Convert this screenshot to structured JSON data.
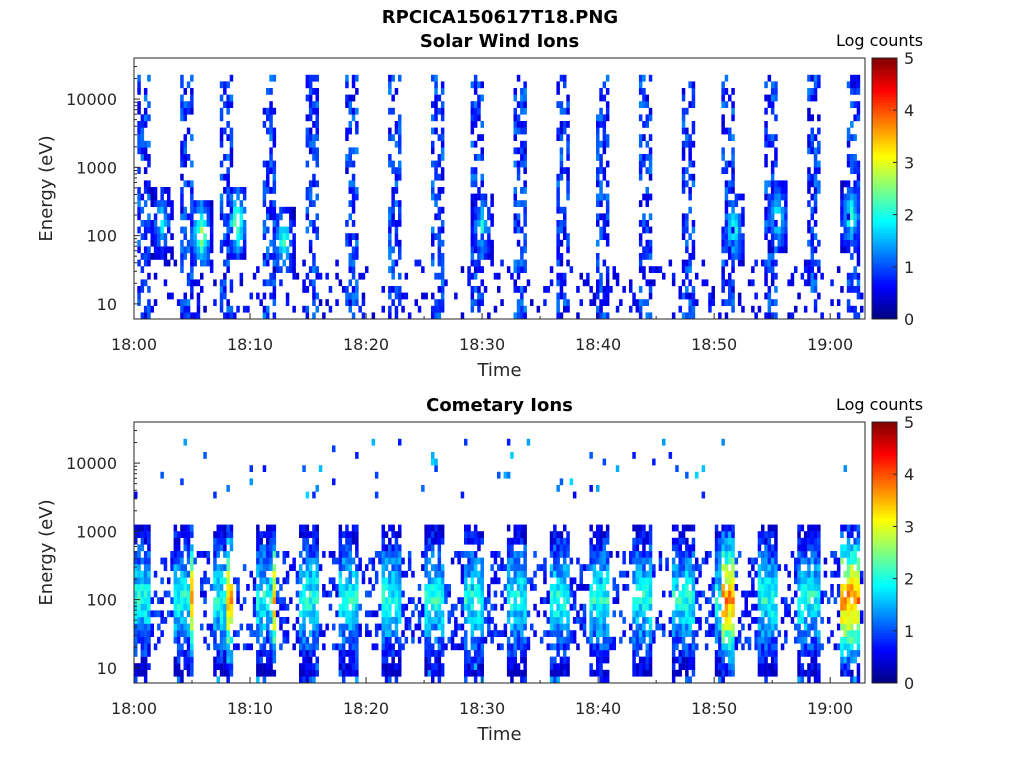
{
  "figure_title": "RPCICA150617T18.PNG",
  "chart_data": [
    {
      "type": "heatmap",
      "title": "Solar Wind Ions",
      "xlabel": "Time",
      "ylabel": "Energy (eV)",
      "x_ticks": [
        "18:00",
        "18:10",
        "18:20",
        "18:30",
        "18:40",
        "18:50",
        "19:00"
      ],
      "y_ticks": [
        "10",
        "100",
        "1000",
        "10000"
      ],
      "x_range": [
        "18:00",
        "19:03"
      ],
      "y_range": [
        6,
        40000
      ],
      "y_scale": "log",
      "colorbar": {
        "label": "Log counts",
        "ticks": [
          "0",
          "1",
          "2",
          "3",
          "4",
          "5"
        ],
        "range": [
          0,
          5
        ],
        "colormap": "jet"
      },
      "pattern": {
        "sweep_period_min": 3.6,
        "sweep_start_min": 0.3,
        "background_max_log_eV": 4.35,
        "background_intensity": [
          0.4,
          1.3
        ],
        "bursts": [
          {
            "time_min": 2.4,
            "energy_eV": 150,
            "peak": 1.7
          },
          {
            "time_min": 5.8,
            "energy_eV": 100,
            "peak": 2.8
          },
          {
            "time_min": 8.9,
            "energy_eV": 150,
            "peak": 2.7
          },
          {
            "time_min": 12.9,
            "energy_eV": 80,
            "peak": 2.2
          },
          {
            "time_min": 30.0,
            "energy_eV": 130,
            "peak": 1.8
          },
          {
            "time_min": 51.7,
            "energy_eV": 120,
            "peak": 2.1
          },
          {
            "time_min": 55.5,
            "energy_eV": 180,
            "peak": 2.0
          },
          {
            "time_min": 61.8,
            "energy_eV": 180,
            "peak": 2.2
          }
        ]
      }
    },
    {
      "type": "heatmap",
      "title": "Cometary Ions",
      "xlabel": "Time",
      "ylabel": "Energy (eV)",
      "x_ticks": [
        "18:00",
        "18:10",
        "18:20",
        "18:30",
        "18:40",
        "18:50",
        "19:00"
      ],
      "y_ticks": [
        "10",
        "100",
        "1000",
        "10000"
      ],
      "x_range": [
        "18:00",
        "19:03"
      ],
      "y_range": [
        6,
        40000
      ],
      "y_scale": "log",
      "colorbar": {
        "label": "Log counts",
        "ticks": [
          "0",
          "1",
          "2",
          "3",
          "4",
          "5"
        ],
        "range": [
          0,
          5
        ],
        "colormap": "jet"
      },
      "pattern": {
        "sweep_period_min": 3.6,
        "sweep_start_min": 0.3,
        "core_energy_eV": 100,
        "core_peak_log_counts": [
          2.0,
          3.8
        ],
        "brightest_columns_min": [
          5.8,
          8.9,
          12.9,
          51.7,
          61.8
        ],
        "sparse_high_energy_eV": [
          3000,
          20000
        ]
      }
    }
  ]
}
